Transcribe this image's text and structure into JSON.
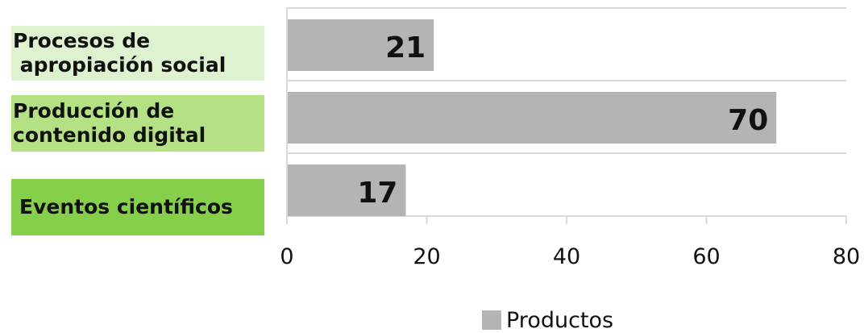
{
  "chart_data": {
    "type": "bar",
    "orientation": "horizontal",
    "categories": [
      {
        "lines": [
          "Procesos de",
          " apropiación social"
        ],
        "box_color": "#dff2cf"
      },
      {
        "lines": [
          "Producción de",
          "contenido digital"
        ],
        "box_color": "#b4e184"
      },
      {
        "lines": [
          "Eventos científicos"
        ],
        "box_color": "#86cf4a"
      }
    ],
    "series": [
      {
        "name": "Productos",
        "values": [
          21,
          70,
          17
        ],
        "color": "#b4b4b4"
      }
    ],
    "data_labels": [
      "21",
      "70",
      "17"
    ],
    "xlim": [
      0,
      80
    ],
    "x_ticks": [
      "0",
      "20",
      "40",
      "60",
      "80"
    ],
    "grid": true,
    "legend_position": "bottom"
  }
}
